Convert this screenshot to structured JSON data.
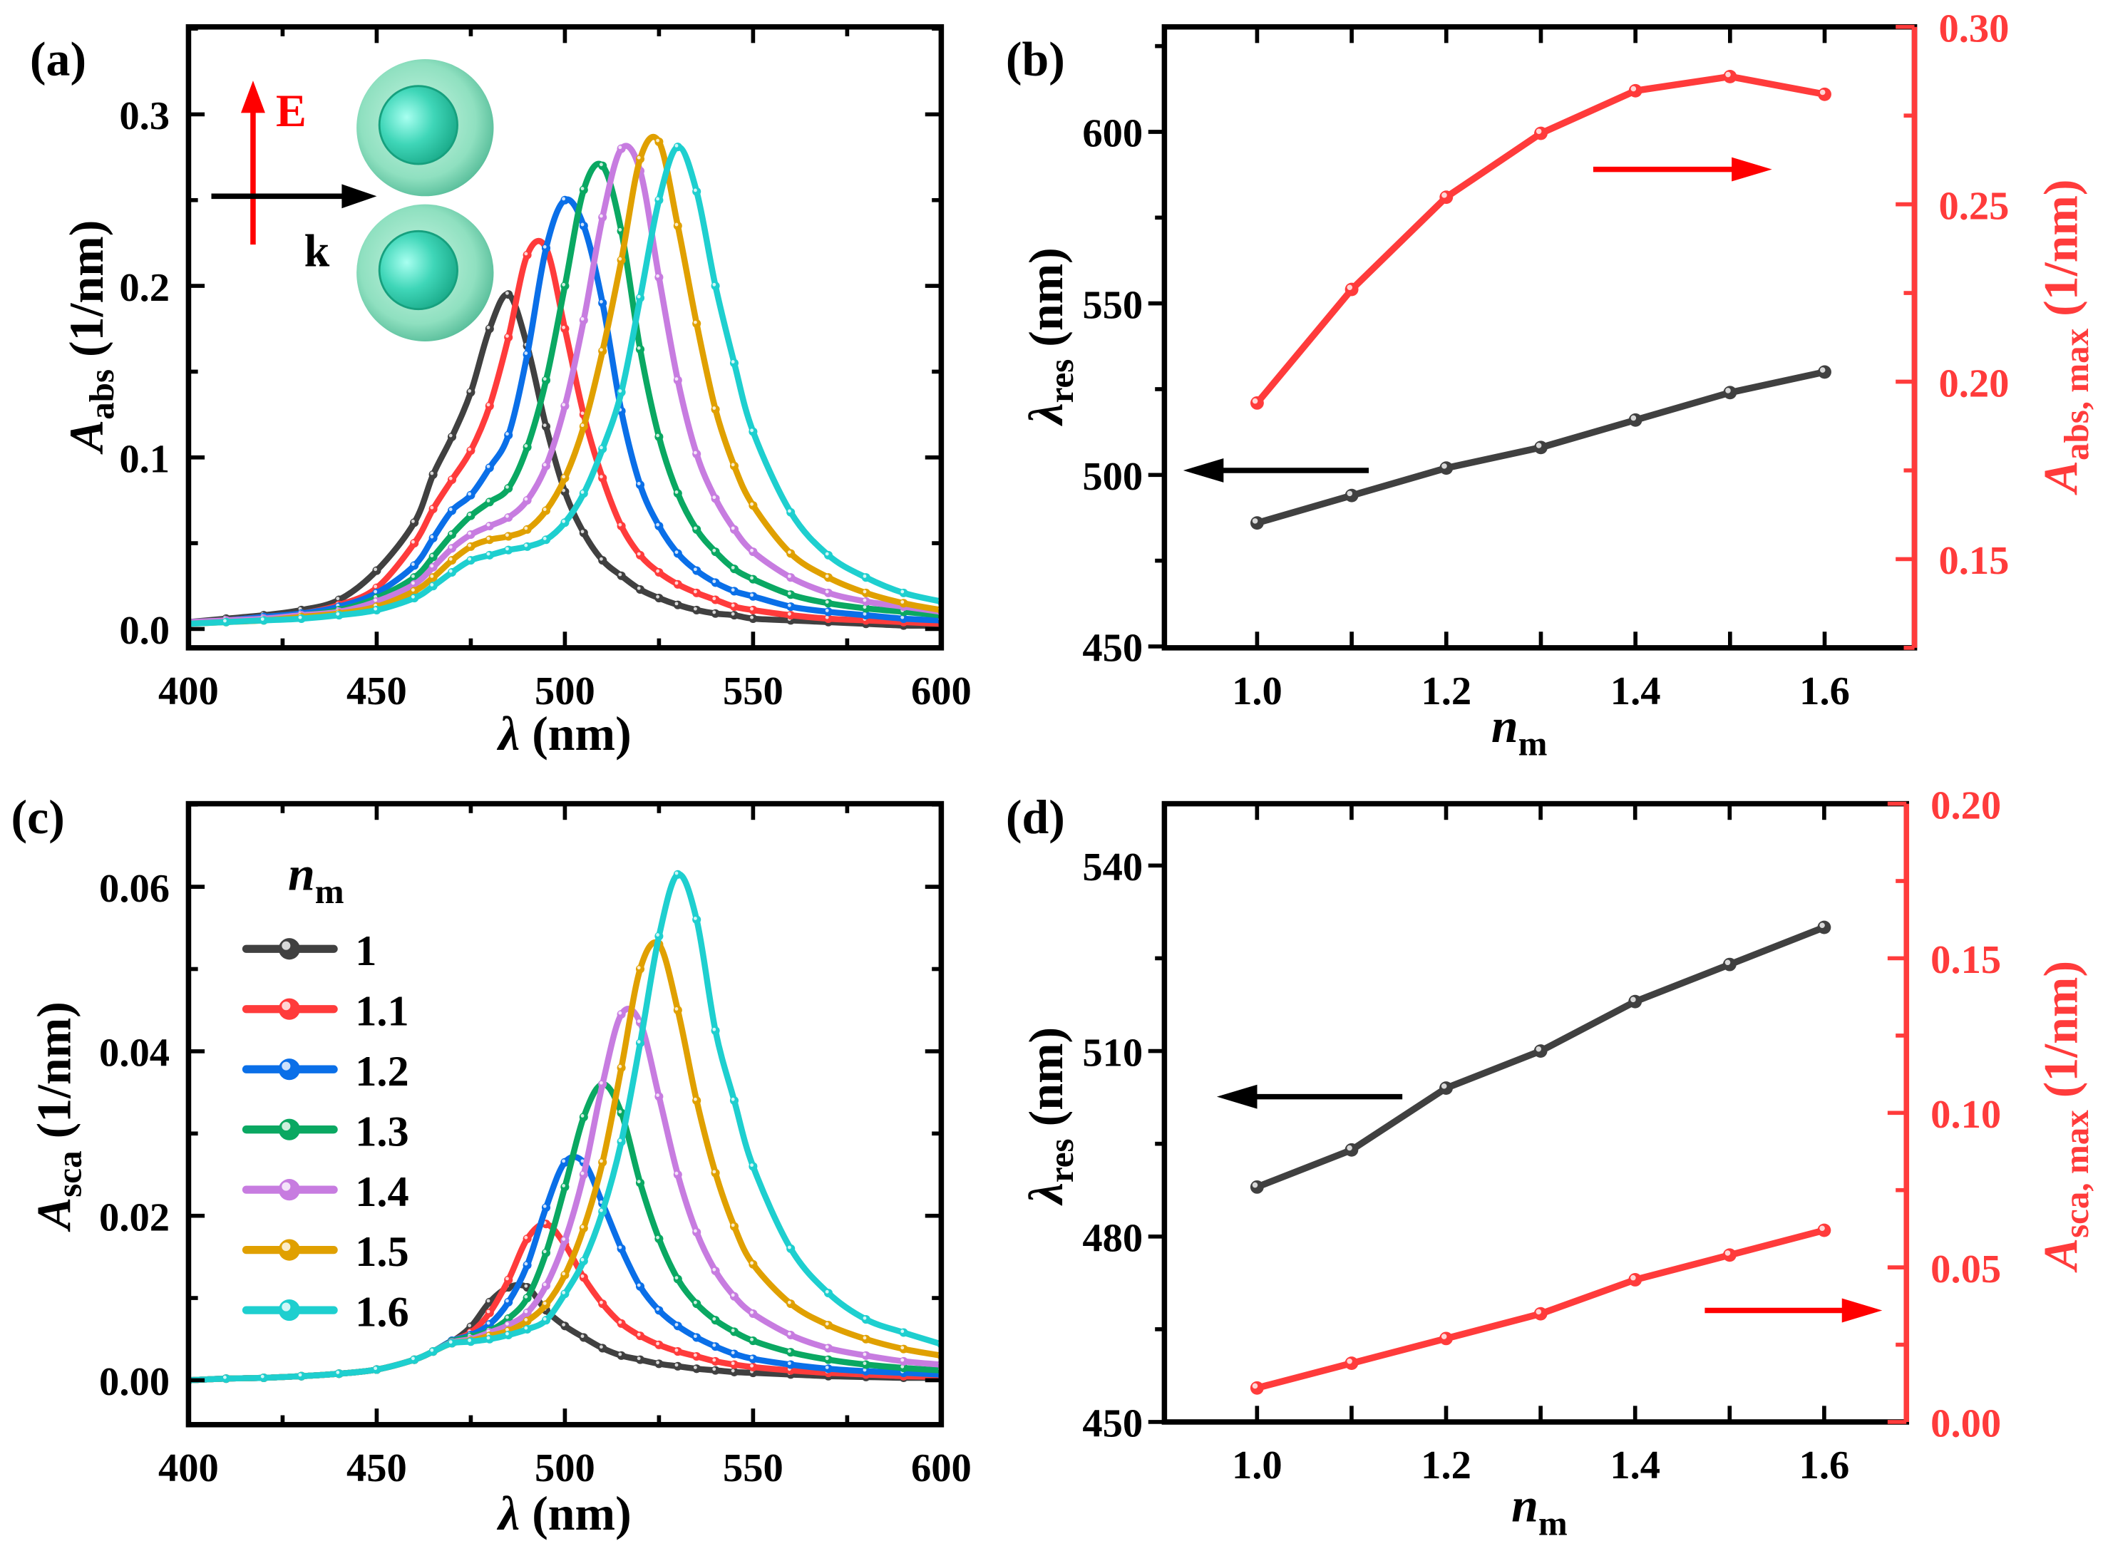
{
  "panel_labels": {
    "a": "(a)",
    "b": "(b)",
    "c": "(c)",
    "d": "(d)"
  },
  "colors": {
    "1": "#404040",
    "1.1": "#ff3b3b",
    "1.2": "#0a6fe8",
    "1.3": "#0aa862",
    "1.4": "#c77ce0",
    "1.5": "#e0a000",
    "1.6": "#1ecfcf",
    "right_axis": "#ff3b3b"
  },
  "inset": {
    "e_label": "E",
    "k_label": "k",
    "icon": "core-shell-dimer-icon"
  },
  "legend": {
    "title_main": "n",
    "title_sub": "m",
    "entries": [
      "1",
      "1.1",
      "1.2",
      "1.3",
      "1.4",
      "1.5",
      "1.6"
    ]
  },
  "chart_data": [
    {
      "panel": "a",
      "type": "line",
      "xlabel": {
        "main": "λ",
        "unit": " (nm)"
      },
      "ylabel": {
        "main": "A",
        "sub": "abs",
        "unit": "  (1/nm)"
      },
      "xlim": [
        400,
        600
      ],
      "ylim": [
        -0.011,
        0.351
      ],
      "xticks": [
        400,
        450,
        500,
        550,
        600
      ],
      "xtick_labels": [
        "400",
        "450",
        "500",
        "550",
        "600"
      ],
      "yticks": [
        0,
        0.1,
        0.2,
        0.3
      ],
      "ytick_labels": [
        "0.0",
        "0.1",
        "0.2",
        "0.3"
      ],
      "x": [
        400,
        410,
        420,
        430,
        440,
        450,
        460,
        465,
        470,
        475,
        480,
        485,
        490,
        495,
        500,
        505,
        510,
        515,
        520,
        525,
        530,
        535,
        540,
        545,
        550,
        560,
        570,
        580,
        590,
        600
      ],
      "series": [
        {
          "name": "1",
          "values": [
            0.004,
            0.006,
            0.008,
            0.011,
            0.017,
            0.034,
            0.062,
            0.09,
            0.112,
            0.138,
            0.175,
            0.195,
            0.165,
            0.118,
            0.08,
            0.056,
            0.04,
            0.031,
            0.023,
            0.018,
            0.014,
            0.011,
            0.009,
            0.008,
            0.006,
            0.005,
            0.004,
            0.003,
            0.002,
            0.002
          ]
        },
        {
          "name": "1.1",
          "values": [
            0.004,
            0.005,
            0.007,
            0.009,
            0.014,
            0.024,
            0.05,
            0.07,
            0.087,
            0.104,
            0.13,
            0.17,
            0.218,
            0.222,
            0.175,
            0.125,
            0.088,
            0.06,
            0.043,
            0.033,
            0.026,
            0.021,
            0.017,
            0.013,
            0.011,
            0.008,
            0.006,
            0.005,
            0.004,
            0.003
          ]
        },
        {
          "name": "1.2",
          "values": [
            0.004,
            0.005,
            0.007,
            0.009,
            0.013,
            0.021,
            0.037,
            0.053,
            0.069,
            0.078,
            0.094,
            0.113,
            0.16,
            0.222,
            0.25,
            0.235,
            0.19,
            0.127,
            0.084,
            0.06,
            0.044,
            0.034,
            0.027,
            0.022,
            0.019,
            0.013,
            0.01,
            0.008,
            0.006,
            0.005
          ]
        },
        {
          "name": "1.3",
          "values": [
            0.004,
            0.005,
            0.006,
            0.008,
            0.011,
            0.018,
            0.03,
            0.042,
            0.055,
            0.066,
            0.074,
            0.082,
            0.106,
            0.145,
            0.2,
            0.256,
            0.27,
            0.232,
            0.163,
            0.112,
            0.079,
            0.058,
            0.045,
            0.035,
            0.029,
            0.02,
            0.015,
            0.012,
            0.01,
            0.008
          ]
        },
        {
          "name": "1.4",
          "values": [
            0.004,
            0.005,
            0.006,
            0.008,
            0.01,
            0.016,
            0.026,
            0.036,
            0.047,
            0.055,
            0.06,
            0.065,
            0.075,
            0.095,
            0.13,
            0.18,
            0.24,
            0.28,
            0.267,
            0.205,
            0.145,
            0.102,
            0.076,
            0.058,
            0.045,
            0.03,
            0.021,
            0.016,
            0.013,
            0.01
          ]
        },
        {
          "name": "1.5",
          "values": [
            0.003,
            0.004,
            0.005,
            0.007,
            0.009,
            0.013,
            0.022,
            0.03,
            0.04,
            0.048,
            0.052,
            0.054,
            0.058,
            0.069,
            0.088,
            0.118,
            0.162,
            0.215,
            0.274,
            0.284,
            0.235,
            0.178,
            0.128,
            0.095,
            0.072,
            0.044,
            0.03,
            0.021,
            0.015,
            0.011
          ]
        },
        {
          "name": "1.6",
          "values": [
            0.003,
            0.004,
            0.005,
            0.006,
            0.008,
            0.011,
            0.018,
            0.025,
            0.033,
            0.04,
            0.043,
            0.046,
            0.048,
            0.052,
            0.062,
            0.079,
            0.105,
            0.138,
            0.193,
            0.25,
            0.281,
            0.255,
            0.2,
            0.155,
            0.115,
            0.068,
            0.043,
            0.03,
            0.021,
            0.016
          ]
        }
      ]
    },
    {
      "panel": "b",
      "type": "line",
      "xlabel": {
        "main": "n",
        "sub": "m"
      },
      "ylabel": {
        "main": "λ",
        "sub": "res",
        "unit": "  (nm)"
      },
      "ylabel_right": {
        "main": "A",
        "sub": "abs, max",
        "unit": "  (1/nm)"
      },
      "xlim": [
        0.902,
        1.695
      ],
      "ylim": [
        449.6,
        630.6
      ],
      "ylim_right": [
        0.125,
        0.3
      ],
      "xticks": [
        1.0,
        1.2,
        1.4,
        1.6
      ],
      "xtick_labels": [
        "1.0",
        "1.2",
        "1.4",
        "1.6"
      ],
      "yticks": [
        450,
        500,
        550,
        600
      ],
      "ytick_labels": [
        "450",
        "500",
        "550",
        "600"
      ],
      "yticks_right": [
        0.15,
        0.2,
        0.25,
        0.3
      ],
      "ytick_labels_right": [
        "0.15",
        "0.20",
        "0.25",
        "0.30"
      ],
      "x": [
        1.0,
        1.1,
        1.2,
        1.3,
        1.4,
        1.5,
        1.6
      ],
      "series": [
        {
          "name": "λres",
          "axis": "left",
          "values": [
            486,
            494,
            502,
            508,
            516,
            524,
            530
          ]
        },
        {
          "name": "Aabs,max",
          "axis": "right",
          "values": [
            0.194,
            0.226,
            0.252,
            0.27,
            0.282,
            0.286,
            0.281
          ]
        }
      ]
    },
    {
      "panel": "c",
      "type": "line",
      "xlabel": {
        "main": "λ",
        "unit": " (nm)"
      },
      "ylabel": {
        "main": "A",
        "sub": "sca",
        "unit": "  (1/nm)"
      },
      "xlim": [
        400,
        600
      ],
      "ylim": [
        -0.0054,
        0.0701
      ],
      "xticks": [
        400,
        450,
        500,
        550,
        600
      ],
      "xtick_labels": [
        "400",
        "450",
        "500",
        "550",
        "600"
      ],
      "yticks": [
        0,
        0.02,
        0.04,
        0.06
      ],
      "ytick_labels": [
        "0.00",
        "0.02",
        "0.04",
        "0.06"
      ],
      "legend_position": "top-left",
      "x": [
        400,
        410,
        420,
        430,
        440,
        450,
        460,
        465,
        470,
        475,
        480,
        485,
        490,
        495,
        500,
        505,
        510,
        515,
        520,
        525,
        530,
        535,
        540,
        545,
        550,
        560,
        570,
        580,
        590,
        600
      ],
      "series": [
        {
          "name": "1",
          "values": [
            0,
            0.0002,
            0.0003,
            0.0005,
            0.0008,
            0.0013,
            0.0025,
            0.0035,
            0.0047,
            0.0065,
            0.0095,
            0.0113,
            0.0113,
            0.0085,
            0.0066,
            0.0052,
            0.0039,
            0.003,
            0.0025,
            0.002,
            0.0017,
            0.0014,
            0.0012,
            0.001,
            0.0009,
            0.0007,
            0.0005,
            0.0004,
            0.0003,
            0.0003
          ]
        },
        {
          "name": "1.1",
          "values": [
            0,
            0.0002,
            0.0003,
            0.0005,
            0.0008,
            0.0013,
            0.0025,
            0.0035,
            0.0048,
            0.0058,
            0.0082,
            0.0122,
            0.0172,
            0.019,
            0.0165,
            0.0125,
            0.0093,
            0.0069,
            0.0054,
            0.0043,
            0.0035,
            0.0029,
            0.0023,
            0.0019,
            0.0016,
            0.0012,
            0.0009,
            0.0007,
            0.0005,
            0.0004
          ]
        },
        {
          "name": "1.2",
          "values": [
            0,
            0.0002,
            0.0003,
            0.0005,
            0.0008,
            0.0013,
            0.0025,
            0.0035,
            0.0048,
            0.0055,
            0.0068,
            0.0095,
            0.014,
            0.021,
            0.0265,
            0.0265,
            0.0215,
            0.016,
            0.0114,
            0.0085,
            0.0066,
            0.0052,
            0.0041,
            0.0032,
            0.0026,
            0.0019,
            0.0014,
            0.0011,
            0.0009,
            0.0007
          ]
        },
        {
          "name": "1.3",
          "values": [
            0,
            0.0002,
            0.0003,
            0.0005,
            0.0008,
            0.0013,
            0.0025,
            0.0035,
            0.0047,
            0.0053,
            0.006,
            0.0075,
            0.01,
            0.0155,
            0.0235,
            0.032,
            0.036,
            0.0325,
            0.024,
            0.0172,
            0.0123,
            0.0093,
            0.0073,
            0.0059,
            0.0048,
            0.0034,
            0.0025,
            0.0019,
            0.0015,
            0.0012
          ]
        },
        {
          "name": "1.4",
          "values": [
            0,
            0.0002,
            0.0003,
            0.0005,
            0.0008,
            0.0013,
            0.0025,
            0.0035,
            0.0046,
            0.005,
            0.0058,
            0.0067,
            0.0082,
            0.0115,
            0.017,
            0.025,
            0.036,
            0.0445,
            0.0435,
            0.0345,
            0.025,
            0.018,
            0.0133,
            0.0102,
            0.0081,
            0.0055,
            0.0039,
            0.003,
            0.0023,
            0.0019
          ]
        },
        {
          "name": "1.5",
          "values": [
            0,
            0.0002,
            0.0003,
            0.0005,
            0.0008,
            0.0013,
            0.0025,
            0.0035,
            0.0045,
            0.0048,
            0.0054,
            0.006,
            0.0072,
            0.0092,
            0.0128,
            0.0185,
            0.0265,
            0.038,
            0.05,
            0.053,
            0.045,
            0.034,
            0.0252,
            0.0187,
            0.0141,
            0.0093,
            0.0067,
            0.005,
            0.0038,
            0.003
          ]
        },
        {
          "name": "1.6",
          "values": [
            0,
            0.0002,
            0.0003,
            0.0005,
            0.0008,
            0.0013,
            0.0025,
            0.0035,
            0.0045,
            0.0047,
            0.005,
            0.0055,
            0.0062,
            0.0073,
            0.0105,
            0.0145,
            0.0205,
            0.029,
            0.041,
            0.054,
            0.0615,
            0.056,
            0.0425,
            0.034,
            0.026,
            0.016,
            0.0106,
            0.0074,
            0.0058,
            0.0044
          ]
        }
      ]
    },
    {
      "panel": "d",
      "type": "line",
      "xlabel": {
        "main": "n",
        "sub": "m"
      },
      "ylabel": {
        "main": "λ",
        "sub": "res",
        "unit": "  (nm)"
      },
      "ylabel_right": {
        "main": "A",
        "sub": "sca, max",
        "unit": "  (1/nm)"
      },
      "xlim": [
        0.902,
        1.687
      ],
      "ylim": [
        450,
        550
      ],
      "ylim_right": [
        0,
        0.2
      ],
      "xticks": [
        1.0,
        1.2,
        1.4,
        1.6
      ],
      "xtick_labels": [
        "1.0",
        "1.2",
        "1.4",
        "1.6"
      ],
      "yticks": [
        450,
        480,
        510,
        540
      ],
      "ytick_labels": [
        "450",
        "480",
        "510",
        "540"
      ],
      "yticks_right": [
        0,
        0.05,
        0.1,
        0.15,
        0.2
      ],
      "ytick_labels_right": [
        "0.00",
        "0.05",
        "0.10",
        "0.15",
        "0.20"
      ],
      "x": [
        1.0,
        1.1,
        1.2,
        1.3,
        1.4,
        1.5,
        1.6
      ],
      "series": [
        {
          "name": "λres",
          "axis": "left",
          "values": [
            488,
            494,
            504,
            510,
            518,
            524,
            530
          ]
        },
        {
          "name": "Asca,max",
          "axis": "right",
          "values": [
            0.011,
            0.019,
            0.027,
            0.035,
            0.046,
            0.054,
            0.062
          ]
        }
      ]
    }
  ]
}
